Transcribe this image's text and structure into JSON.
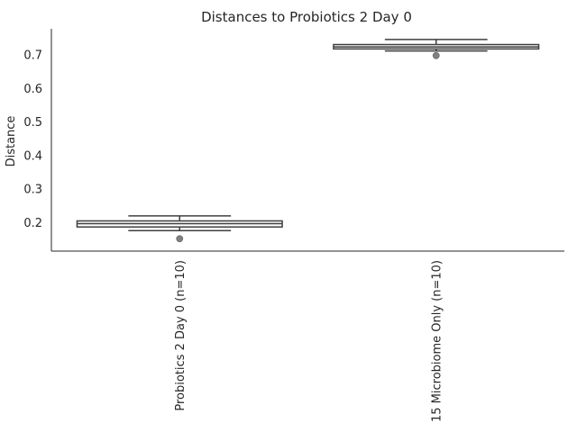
{
  "chart_data": {
    "type": "box",
    "title": "Distances to Probiotics 2 Day 0",
    "xlabel": "",
    "ylabel": "Distance",
    "ylim": [
      0.115,
      0.778
    ],
    "yticks": [
      "0.2",
      "0.3",
      "0.4",
      "0.5",
      "0.6",
      "0.7"
    ],
    "grid": false,
    "categories": [
      "Probiotics 2 Day 0 (n=10)",
      "15 Microbiome Only (n=10)"
    ],
    "boxes": [
      {
        "category": "Probiotics 2 Day 0 (n=10)",
        "whisker_low": 0.176,
        "q1": 0.187,
        "median": 0.197,
        "q3": 0.205,
        "whisker_high": 0.22,
        "outliers": [
          0.152
        ]
      },
      {
        "category": "15 Microbiome Only (n=10)",
        "whisker_low": 0.712,
        "q1": 0.718,
        "median": 0.724,
        "q3": 0.731,
        "whisker_high": 0.746,
        "outliers": [
          0.698
        ]
      }
    ],
    "colors": {
      "box_fill": "#ffffff",
      "box_line": "#3f3f3f",
      "outlier": "#808080",
      "axis": "#262626"
    }
  }
}
